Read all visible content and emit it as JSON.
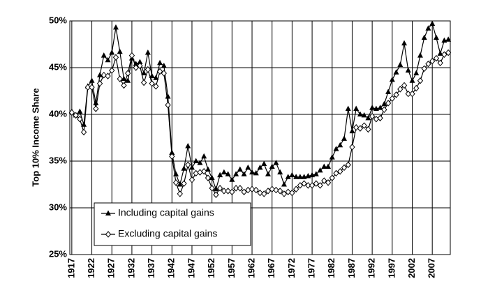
{
  "chart_data": {
    "type": "line",
    "y_label": "Top 10% Income Share",
    "x": [
      1917,
      1918,
      1919,
      1920,
      1921,
      1922,
      1923,
      1924,
      1925,
      1926,
      1927,
      1928,
      1929,
      1930,
      1931,
      1932,
      1933,
      1934,
      1935,
      1936,
      1937,
      1938,
      1939,
      1940,
      1941,
      1942,
      1943,
      1944,
      1945,
      1946,
      1947,
      1948,
      1949,
      1950,
      1951,
      1952,
      1953,
      1954,
      1955,
      1956,
      1957,
      1958,
      1959,
      1960,
      1961,
      1962,
      1963,
      1964,
      1965,
      1966,
      1967,
      1968,
      1969,
      1970,
      1971,
      1972,
      1973,
      1974,
      1975,
      1976,
      1977,
      1978,
      1979,
      1980,
      1981,
      1982,
      1983,
      1984,
      1985,
      1986,
      1987,
      1988,
      1989,
      1990,
      1991,
      1992,
      1993,
      1994,
      1995,
      1996,
      1997,
      1998,
      1999,
      2000,
      2001,
      2002,
      2003,
      2004,
      2005,
      2006,
      2007,
      2008,
      2009,
      2010,
      2011
    ],
    "series": [
      {
        "name": "Including capital gains",
        "color": "#000000",
        "marker": "triangle",
        "values": [
          40.3,
          39.9,
          40.3,
          38.9,
          43.0,
          43.6,
          41.2,
          44.2,
          46.3,
          45.8,
          46.6,
          49.3,
          46.7,
          43.8,
          43.6,
          46.0,
          45.4,
          45.6,
          44.4,
          46.6,
          44.1,
          43.9,
          45.5,
          45.2,
          41.9,
          35.9,
          33.6,
          32.5,
          34.2,
          36.6,
          34.3,
          35.0,
          34.8,
          35.5,
          34.1,
          33.2,
          32.0,
          33.5,
          33.8,
          33.6,
          33.0,
          33.6,
          34.1,
          33.6,
          34.3,
          33.8,
          33.7,
          34.3,
          34.7,
          33.6,
          34.4,
          34.8,
          33.8,
          32.5,
          33.3,
          33.5,
          33.3,
          33.3,
          33.3,
          33.4,
          33.5,
          33.6,
          34.0,
          34.4,
          34.4,
          35.4,
          36.3,
          36.7,
          37.4,
          40.6,
          38.2,
          40.6,
          40.0,
          39.9,
          39.6,
          40.7,
          40.6,
          40.7,
          41.1,
          42.4,
          43.7,
          44.5,
          45.3,
          47.6,
          44.7,
          43.6,
          44.4,
          46.3,
          48.2,
          49.2,
          49.7,
          48.2,
          46.5,
          47.9,
          48.0
        ]
      },
      {
        "name": "Excluding capital gains",
        "color": "#000000",
        "marker": "diamond",
        "values": [
          40.2,
          39.9,
          39.5,
          38.1,
          42.9,
          42.9,
          40.6,
          43.3,
          44.2,
          44.1,
          44.7,
          46.1,
          43.8,
          43.1,
          44.4,
          46.3,
          45.0,
          45.2,
          43.4,
          44.8,
          43.3,
          43.0,
          44.6,
          44.4,
          41.0,
          35.5,
          32.7,
          31.5,
          32.6,
          34.6,
          33.0,
          33.7,
          33.8,
          33.9,
          33.2,
          32.1,
          31.4,
          32.1,
          31.8,
          31.8,
          31.7,
          32.1,
          32.1,
          31.7,
          31.9,
          32.0,
          31.9,
          31.6,
          31.5,
          31.8,
          32.0,
          31.9,
          31.8,
          31.5,
          31.7,
          31.6,
          32.0,
          32.4,
          32.6,
          32.4,
          32.4,
          32.6,
          32.4,
          32.9,
          32.7,
          33.2,
          33.7,
          33.9,
          34.3,
          34.6,
          36.5,
          38.6,
          38.5,
          38.8,
          38.4,
          39.8,
          39.5,
          39.6,
          40.5,
          41.2,
          41.7,
          42.1,
          42.7,
          43.1,
          42.2,
          42.2,
          42.8,
          43.6,
          44.9,
          45.4,
          45.7,
          46.0,
          45.5,
          46.4,
          46.6
        ]
      }
    ],
    "xlim": [
      1916.5,
      2011.5
    ],
    "xticks": [
      1917,
      1922,
      1927,
      1932,
      1937,
      1942,
      1947,
      1952,
      1957,
      1962,
      1967,
      1972,
      1977,
      1982,
      1987,
      1992,
      1997,
      2002,
      2007
    ],
    "ylim": [
      25,
      50
    ],
    "yticks": [
      {
        "value": 25,
        "label": "25%"
      },
      {
        "value": 30,
        "label": "30%"
      },
      {
        "value": 35,
        "label": "35%"
      },
      {
        "value": 40,
        "label": "40%"
      },
      {
        "value": 45,
        "label": "45%"
      },
      {
        "value": 50,
        "label": "50%"
      }
    ],
    "grid": true,
    "legend": "lower left"
  }
}
